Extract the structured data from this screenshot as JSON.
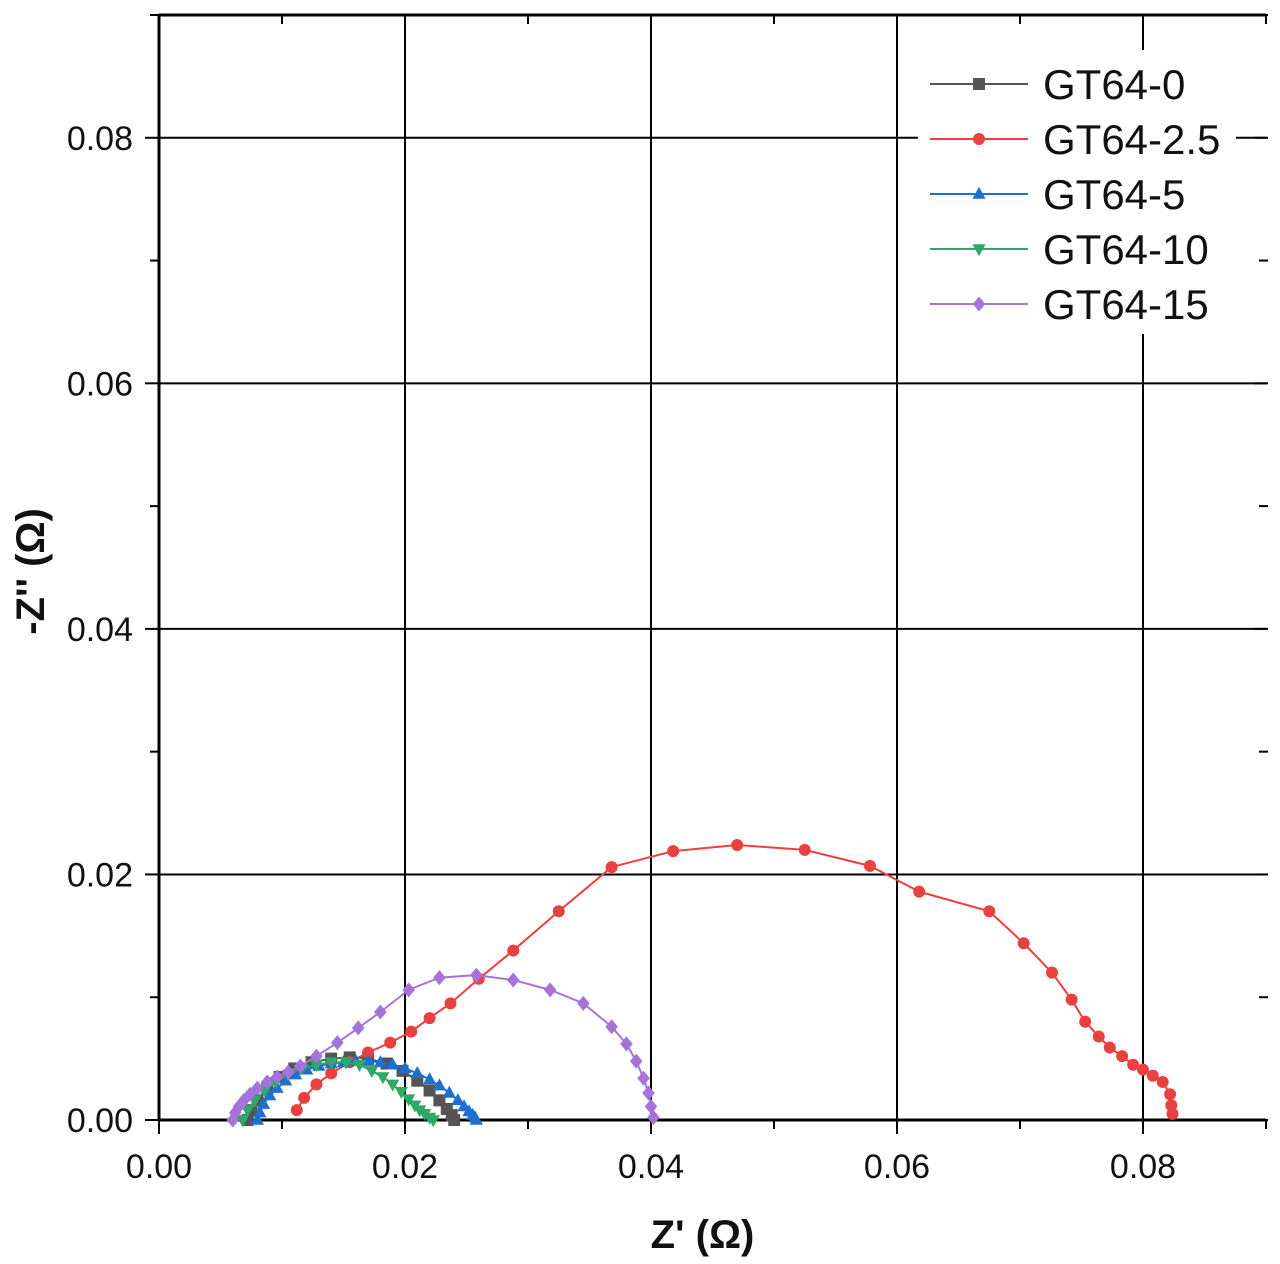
{
  "chart_data": {
    "type": "scatter",
    "xlabel": "Z' (Ω)",
    "ylabel": "-Z'' (Ω)",
    "xlim": [
      0.0,
      0.09
    ],
    "ylim": [
      0.0,
      0.09
    ],
    "xticks": [
      "0.00",
      "0.02",
      "0.04",
      "0.06",
      "0.08"
    ],
    "yticks": [
      "0.00",
      "0.02",
      "0.04",
      "0.06",
      "0.08"
    ],
    "grid": true,
    "legend_position": "top-right",
    "series": [
      {
        "name": "GT64-0",
        "color": "#555555",
        "marker": "square",
        "x": [
          0.0072,
          0.0075,
          0.008,
          0.0088,
          0.0098,
          0.011,
          0.0124,
          0.014,
          0.0155,
          0.017,
          0.0185,
          0.0198,
          0.021,
          0.022,
          0.0228,
          0.0234,
          0.0238,
          0.024
        ],
        "y": [
          0.0,
          0.0008,
          0.0016,
          0.0026,
          0.0035,
          0.0042,
          0.0047,
          0.005,
          0.0051,
          0.005,
          0.0046,
          0.004,
          0.0032,
          0.0024,
          0.0016,
          0.0009,
          0.0004,
          0.0
        ]
      },
      {
        "name": "GT64-2.5",
        "color": "#e8413f",
        "marker": "circle",
        "x": [
          0.0112,
          0.0118,
          0.0128,
          0.014,
          0.0155,
          0.017,
          0.0188,
          0.0205,
          0.022,
          0.0237,
          0.026,
          0.0288,
          0.0325,
          0.0368,
          0.0418,
          0.047,
          0.0525,
          0.0578,
          0.0618,
          0.0675,
          0.0703,
          0.0726,
          0.0742,
          0.0753,
          0.0764,
          0.0773,
          0.0783,
          0.0792,
          0.08,
          0.0808,
          0.0816,
          0.0822,
          0.0823,
          0.0824
        ],
        "y": [
          0.0008,
          0.0018,
          0.0029,
          0.0038,
          0.0047,
          0.0055,
          0.0063,
          0.0072,
          0.0083,
          0.0095,
          0.0115,
          0.0138,
          0.017,
          0.0206,
          0.0219,
          0.0224,
          0.022,
          0.0207,
          0.0186,
          0.017,
          0.0144,
          0.012,
          0.0098,
          0.008,
          0.0068,
          0.0059,
          0.0052,
          0.0045,
          0.0041,
          0.0036,
          0.0031,
          0.0021,
          0.0012,
          0.0005
        ]
      },
      {
        "name": "GT64-5",
        "color": "#1f6fd1",
        "marker": "triangle-up",
        "x": [
          0.008,
          0.0082,
          0.0085,
          0.009,
          0.0096,
          0.0103,
          0.0111,
          0.012,
          0.013,
          0.014,
          0.015,
          0.016,
          0.017,
          0.018,
          0.019,
          0.02,
          0.021,
          0.022,
          0.0228,
          0.0236,
          0.0243,
          0.0248,
          0.0252,
          0.0255,
          0.0257,
          0.0258
        ],
        "y": [
          0.0,
          0.0006,
          0.0013,
          0.002,
          0.0026,
          0.0032,
          0.0037,
          0.0041,
          0.0044,
          0.0046,
          0.0047,
          0.0048,
          0.0048,
          0.0047,
          0.0045,
          0.0042,
          0.0038,
          0.0033,
          0.0028,
          0.0022,
          0.0016,
          0.0011,
          0.0007,
          0.0004,
          0.0002,
          0.0
        ]
      },
      {
        "name": "GT64-10",
        "color": "#2ea866",
        "marker": "triangle-down",
        "x": [
          0.0068,
          0.0072,
          0.0078,
          0.0086,
          0.0095,
          0.0105,
          0.0116,
          0.0128,
          0.014,
          0.0152,
          0.0163,
          0.0173,
          0.0182,
          0.019,
          0.0197,
          0.0203,
          0.0208,
          0.0212,
          0.0216,
          0.022,
          0.0223
        ],
        "y": [
          0.0,
          0.0008,
          0.0016,
          0.0024,
          0.0031,
          0.0037,
          0.0042,
          0.0045,
          0.0047,
          0.0047,
          0.0045,
          0.004,
          0.0035,
          0.0029,
          0.0023,
          0.0017,
          0.0012,
          0.0008,
          0.0005,
          0.0002,
          0.0
        ]
      },
      {
        "name": "GT64-15",
        "color": "#a673db",
        "marker": "diamond",
        "x": [
          0.006,
          0.0062,
          0.0065,
          0.0069,
          0.0074,
          0.008,
          0.0088,
          0.0096,
          0.0105,
          0.0115,
          0.0128,
          0.0145,
          0.0162,
          0.018,
          0.0203,
          0.0228,
          0.0258,
          0.0288,
          0.0318,
          0.0345,
          0.0368,
          0.038,
          0.0388,
          0.0394,
          0.0398,
          0.04,
          0.0402
        ],
        "y": [
          0.0,
          0.0006,
          0.0011,
          0.0016,
          0.0021,
          0.0026,
          0.0031,
          0.0035,
          0.0039,
          0.0044,
          0.0052,
          0.0063,
          0.0075,
          0.0088,
          0.0106,
          0.0116,
          0.0118,
          0.0114,
          0.0106,
          0.0095,
          0.0076,
          0.0062,
          0.0048,
          0.0034,
          0.0022,
          0.0011,
          0.0002
        ]
      }
    ]
  }
}
